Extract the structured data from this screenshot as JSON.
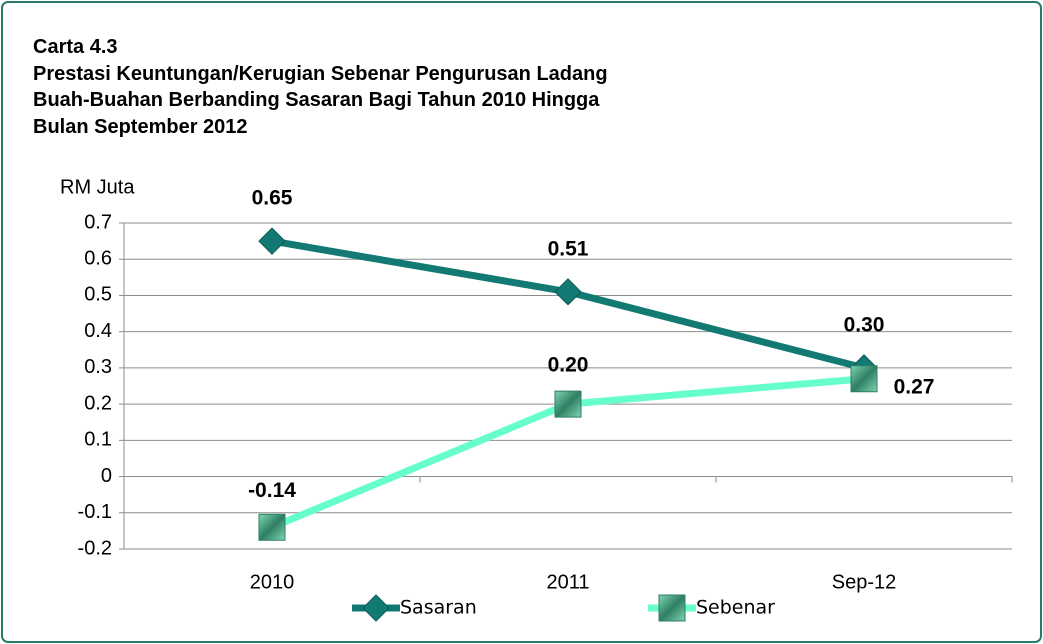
{
  "chart_data": {
    "type": "line",
    "title": [
      "Carta 4.3",
      "Prestasi Keuntungan/Kerugian Sebenar Pengurusan Ladang",
      "Buah-Buahan Berbanding Sasaran Bagi Tahun 2010 Hingga",
      "Bulan September 2012"
    ],
    "y_label": "RM Juta",
    "categories": [
      "2010",
      "2011",
      "Sep-12"
    ],
    "series": [
      {
        "name": "Sasaran",
        "color": "#137a73",
        "values": [
          0.65,
          0.51,
          0.3
        ],
        "value_labels": [
          "0.65",
          "0.51",
          "0.30"
        ]
      },
      {
        "name": "Sebenar",
        "color": "#66ffcc",
        "values": [
          -0.14,
          0.2,
          0.27
        ],
        "value_labels": [
          "-0.14",
          "0.20",
          "0.27"
        ]
      }
    ],
    "ylim": [
      -0.2,
      0.7
    ],
    "yticks": [
      -0.2,
      -0.1,
      0,
      0.1,
      0.2,
      0.3,
      0.4,
      0.5,
      0.6,
      0.7
    ],
    "grid": true,
    "legend": "bottom"
  }
}
